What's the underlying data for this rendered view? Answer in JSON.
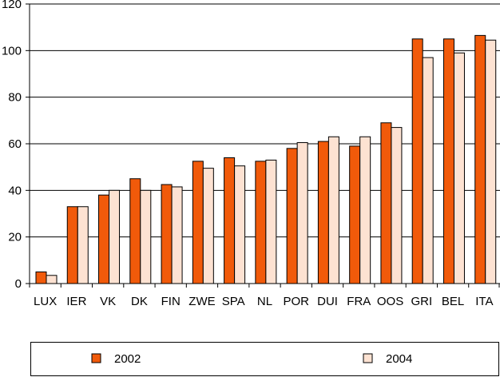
{
  "chart_data": {
    "type": "bar",
    "title": "",
    "xlabel": "",
    "ylabel": "",
    "ylim": [
      0,
      120
    ],
    "yticks": [
      0,
      20,
      40,
      60,
      80,
      100,
      120
    ],
    "grid": true,
    "legend_position": "bottom",
    "categories": [
      "LUX",
      "IER",
      "VK",
      "DK",
      "FIN",
      "ZWE",
      "SPA",
      "NL",
      "POR",
      "DUI",
      "FRA",
      "OOS",
      "GRI",
      "BEL",
      "ITA"
    ],
    "series": [
      {
        "name": "2002",
        "color": "#f15a0a",
        "values": [
          5,
          33,
          38,
          45,
          42.5,
          52.5,
          54,
          52.5,
          58,
          61,
          59,
          69,
          105,
          105,
          106.5
        ]
      },
      {
        "name": "2004",
        "color": "#fde2d2",
        "values": [
          3.5,
          33,
          40,
          40,
          41.5,
          49.5,
          50.5,
          53,
          60.5,
          63,
          63,
          67,
          97,
          99,
          104.5
        ]
      }
    ]
  }
}
